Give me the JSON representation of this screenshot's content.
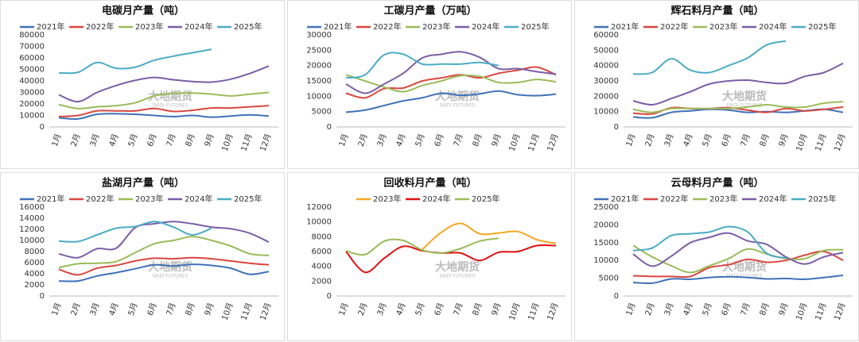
{
  "chart_data": [
    {
      "type": "line",
      "title": "电碳月产量（吨）",
      "watermark": "大地期货",
      "watermark_en": "DADI FUTURES",
      "categories": [
        "1月",
        "2月",
        "3月",
        "4月",
        "5月",
        "6月",
        "7月",
        "8月",
        "9月",
        "10月",
        "11月",
        "12月"
      ],
      "ylim": [
        0,
        80000
      ],
      "yticks": [
        0,
        10000,
        20000,
        30000,
        40000,
        50000,
        60000,
        70000,
        80000
      ],
      "grid": false,
      "legend": "top",
      "series": [
        {
          "name": "2021年",
          "color": "#3f72b8",
          "values": [
            8000,
            7000,
            11000,
            11500,
            11000,
            10000,
            9000,
            10000,
            8500,
            9500,
            10500,
            9500
          ]
        },
        {
          "name": "2022年",
          "color": "#d9473f",
          "values": [
            9000,
            10000,
            14000,
            14000,
            14000,
            16000,
            13500,
            14500,
            16500,
            16500,
            17500,
            18500
          ]
        },
        {
          "name": "2023年",
          "color": "#9bbb59",
          "values": [
            19500,
            16000,
            17500,
            18500,
            21000,
            27000,
            29000,
            29500,
            28500,
            27000,
            28500,
            30000
          ]
        },
        {
          "name": "2024年",
          "color": "#7b5ea7",
          "values": [
            28000,
            22000,
            30000,
            36000,
            40500,
            43000,
            41000,
            39500,
            39000,
            41500,
            46500,
            53000
          ]
        },
        {
          "name": "2025年",
          "color": "#4bacc6",
          "values": [
            47000,
            47500,
            56000,
            51000,
            52000,
            58000,
            61500,
            64500,
            67500,
            null,
            null,
            null
          ]
        }
      ]
    },
    {
      "type": "line",
      "title": "工碳月产量（万吨）",
      "watermark": "大地期货",
      "watermark_en": "DADI FUTURES",
      "categories": [
        "1月",
        "2月",
        "3月",
        "4月",
        "5月",
        "6月",
        "7月",
        "8月",
        "9月",
        "10月",
        "11月",
        "12月"
      ],
      "ylim": [
        0,
        30000
      ],
      "yticks": [
        0,
        5000,
        10000,
        15000,
        20000,
        25000,
        30000
      ],
      "grid": false,
      "legend": "top",
      "series": [
        {
          "name": "2021年",
          "color": "#3f72b8",
          "values": [
            4800,
            5500,
            7000,
            8500,
            9500,
            11000,
            10300,
            10800,
            11700,
            10500,
            10200,
            10700
          ]
        },
        {
          "name": "2022年",
          "color": "#d9473f",
          "values": [
            11000,
            9500,
            12500,
            12700,
            15000,
            16000,
            17000,
            16000,
            17500,
            18500,
            19500,
            17000
          ]
        },
        {
          "name": "2023年",
          "color": "#9bbb59",
          "values": [
            17000,
            15000,
            13000,
            11500,
            13500,
            15000,
            16700,
            16500,
            14500,
            14500,
            15500,
            14700
          ]
        },
        {
          "name": "2024年",
          "color": "#7b5ea7",
          "values": [
            14000,
            11000,
            14000,
            17500,
            22500,
            23700,
            24500,
            22700,
            19000,
            19000,
            18000,
            17200
          ]
        },
        {
          "name": "2025年",
          "color": "#4bacc6",
          "values": [
            16000,
            17000,
            23500,
            23700,
            20500,
            20500,
            20500,
            21000,
            20000,
            null,
            null,
            null
          ]
        }
      ]
    },
    {
      "type": "line",
      "title": "辉石料月产量（吨）",
      "watermark": "大地期货",
      "watermark_en": "DADI FUTURES",
      "categories": [
        "1月",
        "2月",
        "3月",
        "4月",
        "5月",
        "6月",
        "7月",
        "8月",
        "9月",
        "10月",
        "11月",
        "12月"
      ],
      "ylim": [
        0,
        60000
      ],
      "yticks": [
        0,
        10000,
        20000,
        30000,
        40000,
        50000,
        60000
      ],
      "grid": false,
      "legend": "top",
      "series": [
        {
          "name": "2021年",
          "color": "#3f72b8",
          "values": [
            6500,
            6000,
            9500,
            10500,
            11500,
            11000,
            9500,
            10000,
            9500,
            10500,
            11500,
            9500
          ]
        },
        {
          "name": "2022年",
          "color": "#d9473f",
          "values": [
            9000,
            8500,
            12500,
            12000,
            12000,
            12500,
            11000,
            9500,
            12000,
            10500,
            11500,
            13000
          ]
        },
        {
          "name": "2023年",
          "color": "#9bbb59",
          "values": [
            11500,
            9500,
            12000,
            12000,
            12000,
            12000,
            13000,
            14500,
            13000,
            13000,
            15500,
            16500
          ]
        },
        {
          "name": "2024年",
          "color": "#7b5ea7",
          "values": [
            17000,
            14500,
            18500,
            23000,
            28000,
            30000,
            30500,
            29000,
            28500,
            33000,
            35500,
            41500
          ]
        },
        {
          "name": "2025年",
          "color": "#4bacc6",
          "values": [
            34500,
            35500,
            44500,
            37000,
            35500,
            40000,
            45000,
            53500,
            56000,
            null,
            null,
            null
          ]
        }
      ]
    },
    {
      "type": "line",
      "title": "盐湖月产量（吨）",
      "watermark": "大地期货",
      "watermark_en": "DADI FUTURES",
      "categories": [
        "1月",
        "2月",
        "3月",
        "4月",
        "5月",
        "6月",
        "7月",
        "8月",
        "9月",
        "10月",
        "11月",
        "12月"
      ],
      "ylim": [
        0,
        16000
      ],
      "yticks": [
        0,
        2000,
        4000,
        6000,
        8000,
        10000,
        12000,
        14000,
        16000
      ],
      "grid": false,
      "legend": "top",
      "series": [
        {
          "name": "2021年",
          "color": "#3f72b8",
          "values": [
            2700,
            2700,
            3600,
            4200,
            4900,
            5600,
            5400,
            5700,
            5500,
            5000,
            3900,
            4400
          ]
        },
        {
          "name": "2022年",
          "color": "#d9473f",
          "values": [
            4800,
            3800,
            5000,
            5500,
            6300,
            6800,
            6700,
            6900,
            6700,
            6300,
            5900,
            5600
          ]
        },
        {
          "name": "2023年",
          "color": "#9bbb59",
          "values": [
            5100,
            5800,
            5900,
            6200,
            7800,
            9400,
            10000,
            10700,
            10000,
            9000,
            7600,
            7300
          ]
        },
        {
          "name": "2024年",
          "color": "#7b5ea7",
          "values": [
            7600,
            6900,
            8500,
            8600,
            12300,
            13000,
            13400,
            13000,
            12400,
            12100,
            11300,
            9700
          ]
        },
        {
          "name": "2025年",
          "color": "#4bacc6",
          "values": [
            9900,
            9800,
            11000,
            12200,
            12500,
            13400,
            12400,
            11000,
            12200,
            null,
            null,
            null
          ]
        }
      ]
    },
    {
      "type": "line",
      "title": "回收料月产量（吨）",
      "watermark": "大地期货",
      "watermark_en": "DADI FUTURES",
      "categories": [
        "1月",
        "2月",
        "3月",
        "4月",
        "5月",
        "6月",
        "7月",
        "8月",
        "9月",
        "10月",
        "11月",
        "12月"
      ],
      "ylim": [
        0,
        12000
      ],
      "yticks": [
        0,
        2000,
        4000,
        6000,
        8000,
        10000,
        12000
      ],
      "grid": false,
      "legend": "top",
      "series": [
        {
          "name": "2023年",
          "color": "#f5a623",
          "values": [
            null,
            null,
            null,
            null,
            6300,
            8600,
            9800,
            8400,
            8500,
            8700,
            7600,
            7100
          ]
        },
        {
          "name": "2024年",
          "color": "#e01010",
          "values": [
            6000,
            3200,
            5100,
            6700,
            6100,
            5800,
            5800,
            4800,
            5900,
            6000,
            6800,
            6800
          ]
        },
        {
          "name": "2025年",
          "color": "#9bbb59",
          "values": [
            6100,
            5600,
            7400,
            7500,
            6200,
            5800,
            6400,
            7400,
            7800,
            null,
            null,
            null
          ]
        }
      ]
    },
    {
      "type": "line",
      "title": "云母料月产量（吨）",
      "watermark": "大地期货",
      "watermark_en": "DADI FUTURES",
      "categories": [
        "1月",
        "2月",
        "3月",
        "4月",
        "5月",
        "6月",
        "7月",
        "8月",
        "9月",
        "10月",
        "11月",
        "12月"
      ],
      "ylim": [
        0,
        25000
      ],
      "yticks": [
        0,
        5000,
        10000,
        15000,
        20000,
        25000
      ],
      "grid": false,
      "legend": "top",
      "series": [
        {
          "name": "2021年",
          "color": "#3f72b8",
          "values": [
            3800,
            3600,
            4800,
            4700,
            5200,
            5400,
            5200,
            4800,
            4900,
            4700,
            5200,
            5800
          ]
        },
        {
          "name": "2022年",
          "color": "#d9473f",
          "values": [
            5700,
            5500,
            5500,
            5500,
            8000,
            8800,
            10300,
            9500,
            10000,
            11500,
            12500,
            10000
          ]
        },
        {
          "name": "2023年",
          "color": "#9bbb59",
          "values": [
            14200,
            11000,
            8500,
            6600,
            8500,
            10500,
            13200,
            11800,
            10500,
            10500,
            12800,
            13000
          ]
        },
        {
          "name": "2024年",
          "color": "#7b5ea7",
          "values": [
            11800,
            8400,
            11200,
            15000,
            16500,
            17700,
            15500,
            14500,
            11000,
            9000,
            11000,
            12200
          ]
        },
        {
          "name": "2025年",
          "color": "#4bacc6",
          "values": [
            12800,
            13500,
            17000,
            17500,
            18000,
            19500,
            18000,
            12000,
            10700,
            null,
            null,
            null
          ]
        }
      ]
    }
  ]
}
